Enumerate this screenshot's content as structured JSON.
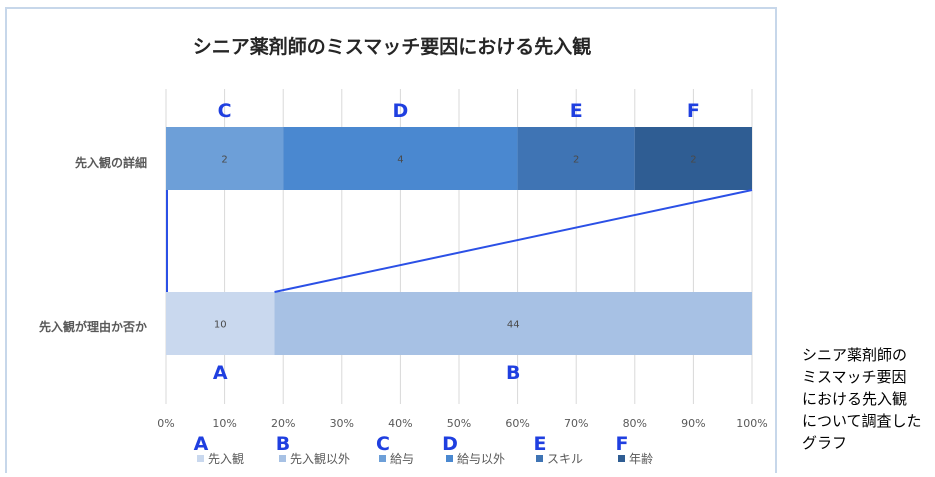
{
  "colors": {
    "grid": "#d9d9d9",
    "axis_text": "#595959",
    "title": "#262626",
    "letter": "#1f3fe0",
    "connector": "#2b50e6",
    "frame": "#c7d7ea"
  },
  "chart_data": {
    "type": "bar",
    "orientation": "horizontal",
    "stacked": "percent",
    "title": "シニア薬剤師のミスマッチ要因における先入観",
    "categories": [
      "先入観の詳細",
      "先入観が理由か否か"
    ],
    "series": [
      {
        "name": "先入観",
        "letter": "A",
        "category": "先入観が理由か否か",
        "value": 10,
        "color": "#c9d8ee"
      },
      {
        "name": "先入観以外",
        "letter": "B",
        "category": "先入観が理由か否か",
        "value": 44,
        "color": "#a7c1e4"
      },
      {
        "name": "給与",
        "letter": "C",
        "category": "先入観の詳細",
        "value": 2,
        "color": "#6d9fd8"
      },
      {
        "name": "給与以外",
        "letter": "D",
        "category": "先入観の詳細",
        "value": 4,
        "color": "#4a88d0"
      },
      {
        "name": "スキル",
        "letter": "E",
        "category": "先入観の詳細",
        "value": 2,
        "color": "#3f74b4"
      },
      {
        "name": "年齢",
        "letter": "F",
        "category": "先入観の詳細",
        "value": 2,
        "color": "#2f5d93"
      }
    ],
    "x_ticks": [
      "0%",
      "10%",
      "20%",
      "30%",
      "40%",
      "50%",
      "60%",
      "70%",
      "80%",
      "90%",
      "100%"
    ],
    "xlim": [
      0,
      1
    ],
    "grid": true,
    "legend_position": "bottom",
    "legend_letters": [
      "A",
      "B",
      "C",
      "D",
      "E",
      "F"
    ]
  },
  "caption": {
    "lines": [
      "シニア薬剤師の",
      "ミスマッチ要因",
      "における先入観",
      "について調査した",
      "グラフ"
    ]
  }
}
